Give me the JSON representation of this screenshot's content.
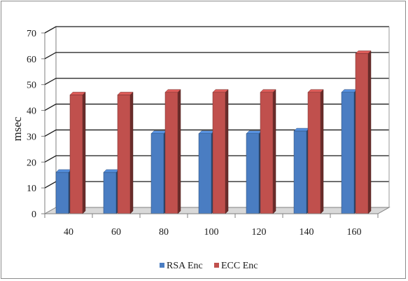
{
  "chart_data": {
    "type": "bar",
    "title": "",
    "xlabel": "",
    "ylabel": "msec",
    "ylim": [
      0,
      70
    ],
    "yticks": [
      0,
      10,
      20,
      30,
      40,
      50,
      60,
      70
    ],
    "categories": [
      "40",
      "60",
      "80",
      "100",
      "120",
      "140",
      "160"
    ],
    "series": [
      {
        "name": "RSA Enc",
        "color": "#4a7dc2",
        "values": [
          16,
          16,
          31,
          31,
          31,
          32,
          47
        ]
      },
      {
        "name": "ECC Enc",
        "color": "#c0504d",
        "values": [
          46,
          46,
          47,
          47,
          47,
          47,
          62
        ]
      }
    ],
    "grid": true,
    "legend": "bottom",
    "style": "3d-clustered-column"
  }
}
